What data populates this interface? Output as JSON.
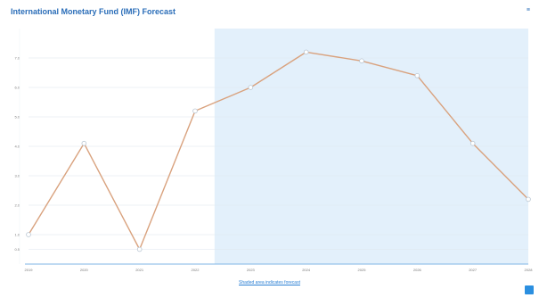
{
  "header": {
    "title": "International Monetary Fund (IMF) Forecast",
    "subtitle": "",
    "corner_label": "≡"
  },
  "footer": {
    "note": "Shaded area indicates forecast"
  },
  "colors": {
    "line": "#d9a27e",
    "marker": "#b9c6d2",
    "forecast_shade": "#e3f0fb",
    "grid": "#dde6ee",
    "axis": "#7fb6e6",
    "accent": "#2b8fe0"
  },
  "chart_data": {
    "type": "line",
    "title": "International Monetary Fund (IMF) Forecast",
    "x": [
      "2019",
      "2020",
      "2021",
      "2022",
      "2023",
      "2024",
      "2025",
      "2026",
      "2027",
      "2028"
    ],
    "series": [
      {
        "values": [
          1.0,
          4.1,
          0.5,
          5.2,
          6.0,
          7.2,
          6.9,
          6.4,
          4.1,
          2.2
        ]
      }
    ],
    "forecast_start_index": 3.35,
    "ylim": [
      0,
      8
    ],
    "yticks": [
      0.5,
      1.0,
      2.0,
      3.0,
      4.0,
      5.0,
      6.0,
      7.0
    ],
    "ytick_labels": [
      "0.5",
      "1.0",
      "2.0",
      "3.0",
      "4.0",
      "5.0",
      "6.0",
      "7.0"
    ],
    "grid": true,
    "legend": "none"
  }
}
